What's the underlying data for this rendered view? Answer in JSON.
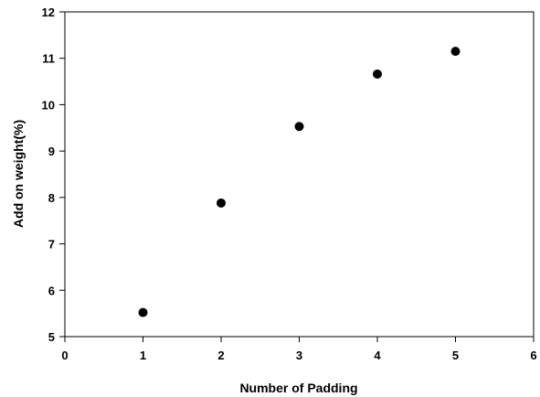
{
  "chart_data": {
    "type": "scatter",
    "title": "",
    "xlabel": "Number of Padding",
    "ylabel": "Add on weight(%)",
    "xlim": [
      0,
      6
    ],
    "ylim": [
      5,
      12
    ],
    "xticks": [
      0,
      1,
      2,
      3,
      4,
      5,
      6
    ],
    "yticks": [
      5,
      6,
      7,
      8,
      9,
      10,
      11,
      12
    ],
    "grid": false,
    "legend": "none",
    "marker_color": "#000000",
    "series": [
      {
        "x": [
          1,
          2,
          3,
          4,
          5
        ],
        "y": [
          5.52,
          7.88,
          9.53,
          10.66,
          11.15
        ]
      }
    ]
  }
}
